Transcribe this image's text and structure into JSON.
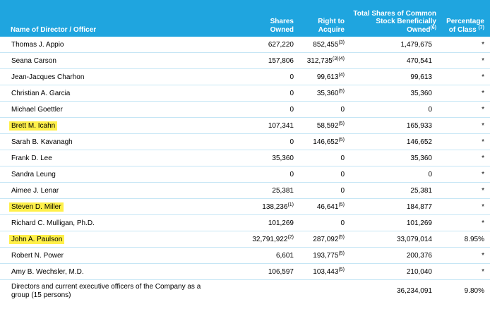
{
  "header": {
    "name": "Name of Director / Officer",
    "shares_owned": [
      "Shares",
      "Owned"
    ],
    "right_to_acquire": [
      "Right to",
      "Acquire"
    ],
    "total": [
      "Total Shares of Common",
      "Stock Beneficially",
      "Owned"
    ],
    "total_note": "(6)",
    "percentage": [
      "Percentage",
      "of Class"
    ],
    "percentage_note": "(7)"
  },
  "rows": [
    {
      "name": "Thomas J. Appio",
      "owned": "627,220",
      "owned_note": "",
      "acquire": "852,455",
      "acquire_note": "(3)",
      "total": "1,479,675",
      "pct": "*",
      "highlight": false
    },
    {
      "name": "Seana Carson",
      "owned": "157,806",
      "owned_note": "",
      "acquire": "312,735",
      "acquire_note": "(3)(4)",
      "total": "470,541",
      "pct": "*",
      "highlight": false
    },
    {
      "name": "Jean-Jacques Charhon",
      "owned": "0",
      "owned_note": "",
      "acquire": "99,613",
      "acquire_note": "(4)",
      "total": "99,613",
      "pct": "*",
      "highlight": false
    },
    {
      "name": "Christian A. Garcia",
      "owned": "0",
      "owned_note": "",
      "acquire": "35,360",
      "acquire_note": "(5)",
      "total": "35,360",
      "pct": "*",
      "highlight": false
    },
    {
      "name": "Michael Goettler",
      "owned": "0",
      "owned_note": "",
      "acquire": "0",
      "acquire_note": "",
      "total": "0",
      "pct": "*",
      "highlight": false
    },
    {
      "name": "Brett M. Icahn",
      "owned": "107,341",
      "owned_note": "",
      "acquire": "58,592",
      "acquire_note": "(5)",
      "total": "165,933",
      "pct": "*",
      "highlight": true
    },
    {
      "name": "Sarah B. Kavanagh",
      "owned": "0",
      "owned_note": "",
      "acquire": "146,652",
      "acquire_note": "(5)",
      "total": "146,652",
      "pct": "*",
      "highlight": false
    },
    {
      "name": "Frank D. Lee",
      "owned": "35,360",
      "owned_note": "",
      "acquire": "0",
      "acquire_note": "",
      "total": "35,360",
      "pct": "*",
      "highlight": false
    },
    {
      "name": "Sandra Leung",
      "owned": "0",
      "owned_note": "",
      "acquire": "0",
      "acquire_note": "",
      "total": "0",
      "pct": "*",
      "highlight": false
    },
    {
      "name": "Aimee J. Lenar",
      "owned": "25,381",
      "owned_note": "",
      "acquire": "0",
      "acquire_note": "",
      "total": "25,381",
      "pct": "*",
      "highlight": false
    },
    {
      "name": "Steven D. Miller",
      "owned": "138,236",
      "owned_note": "(1)",
      "acquire": "46,641",
      "acquire_note": "(5)",
      "total": "184,877",
      "pct": "*",
      "highlight": true
    },
    {
      "name": "Richard C. Mulligan, Ph.D.",
      "owned": "101,269",
      "owned_note": "",
      "acquire": "0",
      "acquire_note": "",
      "total": "101,269",
      "pct": "*",
      "highlight": false
    },
    {
      "name": "John A. Paulson",
      "owned": "32,791,922",
      "owned_note": "(2)",
      "acquire": "287,092",
      "acquire_note": "(5)",
      "total": "33,079,014",
      "pct": "8.95%",
      "highlight": true
    },
    {
      "name": "Robert N. Power",
      "owned": "6,601",
      "owned_note": "",
      "acquire": "193,775",
      "acquire_note": "(5)",
      "total": "200,376",
      "pct": "*",
      "highlight": false
    },
    {
      "name": "Amy B. Wechsler, M.D.",
      "owned": "106,597",
      "owned_note": "",
      "acquire": "103,443",
      "acquire_note": "(5)",
      "total": "210,040",
      "pct": "*",
      "highlight": false
    }
  ],
  "group_row": {
    "name_lines": [
      "Directors and current executive officers of the Company as a",
      "group (15 persons)"
    ],
    "total": "36,234,091",
    "pct": "9.80%"
  }
}
